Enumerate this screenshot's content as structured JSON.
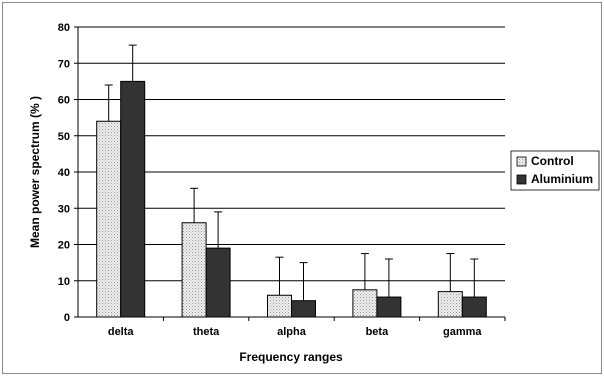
{
  "chart_data": {
    "type": "bar",
    "title": "",
    "xlabel": "Frequency ranges",
    "ylabel": "Mean power spectrum (% )",
    "categories": [
      "delta",
      "theta",
      "alpha",
      "beta",
      "gamma"
    ],
    "ylim": [
      0,
      80
    ],
    "yticks": [
      0,
      10,
      20,
      30,
      40,
      50,
      60,
      70,
      80
    ],
    "grid": true,
    "legend_position": "right",
    "series": [
      {
        "name": "Control",
        "values": [
          54,
          26,
          6,
          7.5,
          7
        ],
        "errors": [
          10,
          9.5,
          10.5,
          10,
          10.5
        ],
        "color": "#e4e4e4",
        "pattern": "dotted"
      },
      {
        "name": "Aluminium",
        "values": [
          65,
          19,
          4.5,
          5.5,
          5.5
        ],
        "errors": [
          10,
          10,
          10.5,
          10.5,
          10.5
        ],
        "color": "#333333",
        "pattern": "solid"
      }
    ]
  }
}
